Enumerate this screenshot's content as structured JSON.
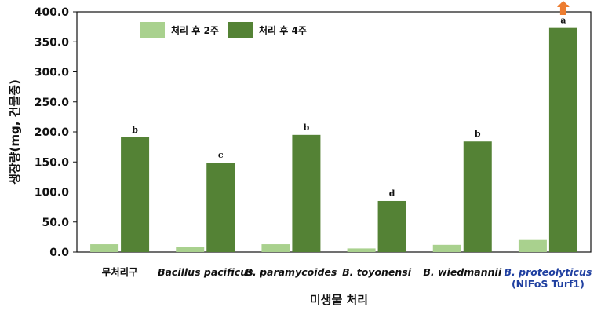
{
  "chart_data": {
    "type": "bar",
    "ylabel": "생장량(mg, 건물중)",
    "xlabel": "미생물 처리",
    "ylim": [
      0,
      400
    ],
    "yticks": [
      "0.0",
      "50.0",
      "100.0",
      "150.0",
      "200.0",
      "250.0",
      "300.0",
      "350.0",
      "400.0"
    ],
    "categories": [
      {
        "line1": "무처리구",
        "line2": "",
        "italic": false,
        "highlight": false
      },
      {
        "line1": "Bacillus pacificus",
        "line2": "",
        "italic": true,
        "highlight": false
      },
      {
        "line1": "B. paramycoides",
        "line2": "",
        "italic": true,
        "highlight": false
      },
      {
        "line1": "B. toyonensi",
        "line2": "",
        "italic": true,
        "highlight": false
      },
      {
        "line1": "B. wiedmannii",
        "line2": "",
        "italic": true,
        "highlight": false
      },
      {
        "line1": "B. proteolyticus",
        "line2": "(NIFoS Turf1)",
        "italic": true,
        "highlight": true
      }
    ],
    "series": [
      {
        "name": "처리 후 2주",
        "color": "#a9d18e",
        "values": [
          13,
          9,
          13,
          6,
          12,
          20
        ]
      },
      {
        "name": "처리 후 4주",
        "color": "#548235",
        "values": [
          191,
          149,
          195,
          85,
          184,
          373
        ]
      }
    ],
    "significance_letters": [
      "b",
      "c",
      "b",
      "d",
      "b",
      "a"
    ],
    "highlight_marker": {
      "icon": "up-arrow-icon",
      "color": "#ed7d31",
      "category_index": 5
    },
    "legend_position": "top-left",
    "grid": false
  }
}
